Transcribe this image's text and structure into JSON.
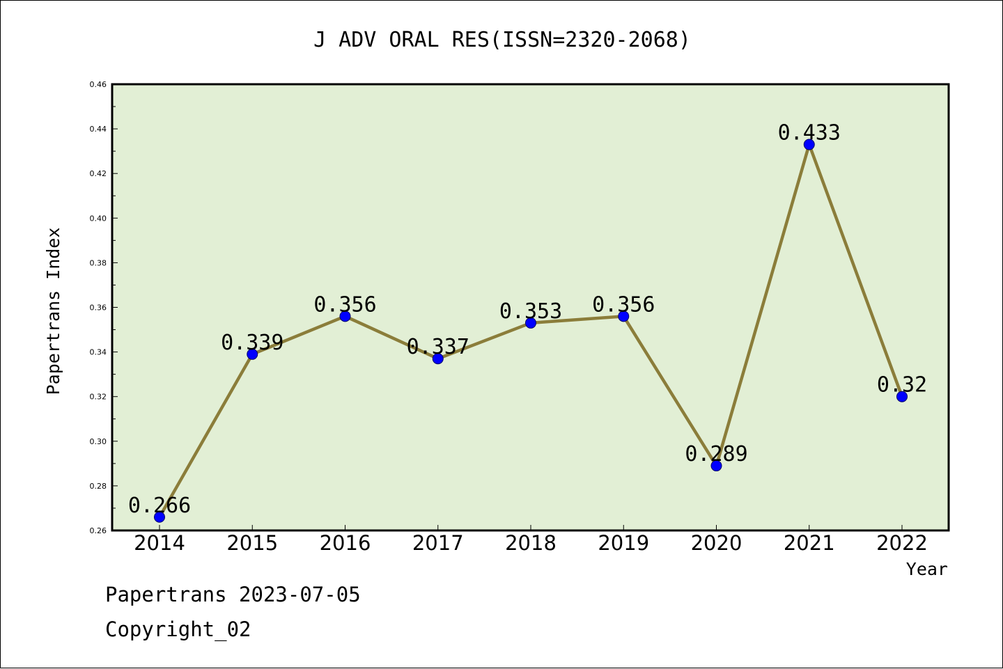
{
  "chart_data": {
    "type": "line",
    "title": "J ADV ORAL RES(ISSN=2320-2068)",
    "xlabel": "Year",
    "ylabel": "Papertrans Index",
    "categories": [
      "2014",
      "2015",
      "2016",
      "2017",
      "2018",
      "2019",
      "2020",
      "2021",
      "2022"
    ],
    "series": [
      {
        "values": [
          0.266,
          0.339,
          0.356,
          0.337,
          0.353,
          0.356,
          0.289,
          0.433,
          0.32
        ],
        "labels": [
          "0.266",
          "0.339",
          "0.356",
          "0.337",
          "0.353",
          "0.356",
          "0.289",
          "0.433",
          "0.32"
        ]
      }
    ],
    "ylim": [
      0.26,
      0.46
    ],
    "yticks": [
      "0.26",
      "0.28",
      "0.30",
      "0.32",
      "0.34",
      "0.36",
      "0.38",
      "0.40",
      "0.42",
      "0.44",
      "0.46"
    ],
    "grid": false,
    "colors": {
      "plot_background": "#e2efd5",
      "line": "#8b7d3a",
      "marker": "#0000ff"
    }
  },
  "footer": {
    "date_line": "Papertrans 2023-07-05",
    "copyright": "Copyright_02"
  }
}
